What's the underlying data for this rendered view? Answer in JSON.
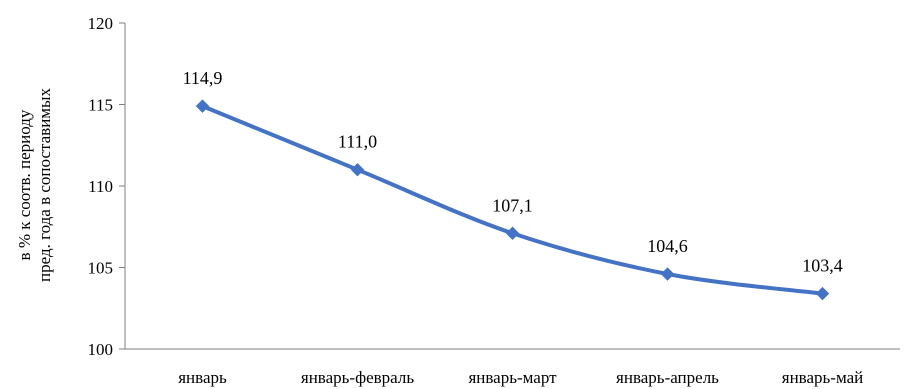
{
  "chart_data": {
    "type": "line",
    "categories": [
      "январь",
      "январь-февраль",
      "январь-март",
      "январь-апрель",
      "январь-май"
    ],
    "series": [
      {
        "values": [
          114.9,
          111.0,
          107.1,
          104.6,
          103.4
        ],
        "labels": [
          "114,9",
          "111,0",
          "107,1",
          "104,6",
          "103,4"
        ],
        "color": "#4472C4",
        "marker": "diamond",
        "smooth": true
      }
    ],
    "ylabel_lines": [
      "в % к соотв. периоду",
      "пред. года в сопоставимых"
    ],
    "ylim": [
      100,
      120
    ],
    "yticks": [
      100,
      105,
      110,
      115,
      120
    ],
    "grid": false,
    "legend": "none"
  }
}
